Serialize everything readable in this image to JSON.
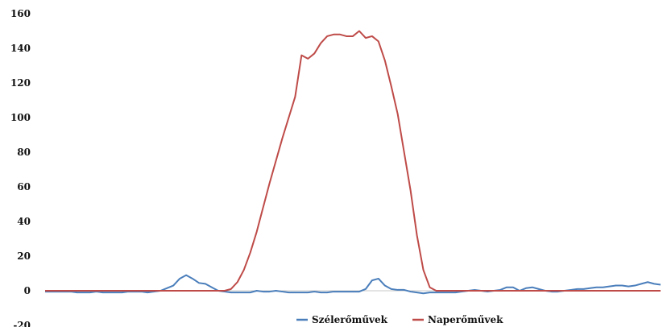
{
  "chart_data": {
    "type": "line",
    "title": "",
    "xlabel": "",
    "ylabel": "",
    "ylim": [
      -20,
      160
    ],
    "yticks": [
      -20,
      0,
      20,
      40,
      60,
      80,
      100,
      120,
      140,
      160
    ],
    "ytick_labels": [
      "-20",
      "0",
      "20",
      "40",
      "60",
      "80",
      "100",
      "120",
      "140",
      "160"
    ],
    "grid": false,
    "legend_position": "bottom",
    "x": [
      0,
      1,
      2,
      3,
      4,
      5,
      6,
      7,
      8,
      9,
      10,
      11,
      12,
      13,
      14,
      15,
      16,
      17,
      18,
      19,
      20,
      21,
      22,
      23,
      24,
      25,
      26,
      27,
      28,
      29,
      30,
      31,
      32,
      33,
      34,
      35,
      36,
      37,
      38,
      39,
      40,
      41,
      42,
      43,
      44,
      45,
      46,
      47,
      48,
      49,
      50,
      51,
      52,
      53,
      54,
      55,
      56,
      57,
      58,
      59,
      60,
      61,
      62,
      63,
      64,
      65,
      66,
      67,
      68,
      69,
      70,
      71,
      72,
      73,
      74,
      75,
      76,
      77,
      78,
      79,
      80,
      81,
      82,
      83,
      84,
      85,
      86,
      87,
      88,
      89,
      90,
      91,
      92,
      93,
      94,
      95,
      96
    ],
    "series": [
      {
        "name": "Szélerőművek",
        "color": "#4a7ebb",
        "values": [
          -0.5,
          -0.5,
          -0.5,
          -0.5,
          -0.5,
          -1,
          -1,
          -1,
          -0.5,
          -1,
          -1,
          -1,
          -1,
          -0.5,
          -0.5,
          -0.5,
          -1,
          -0.5,
          0,
          1.5,
          3,
          7,
          9,
          7,
          4.5,
          4,
          2,
          0,
          -0.5,
          -1,
          -1,
          -1,
          -1,
          0,
          -0.5,
          -0.5,
          0,
          -0.5,
          -1,
          -1,
          -1,
          -1,
          -0.5,
          -1,
          -1,
          -0.5,
          -0.5,
          -0.5,
          -0.5,
          -0.5,
          1,
          6,
          7,
          3,
          1,
          0.5,
          0.5,
          -0.5,
          -1,
          -1.5,
          -1,
          -1,
          -1,
          -1,
          -1,
          -0.5,
          0,
          0.5,
          0,
          -0.5,
          0,
          0.5,
          2,
          2,
          0,
          1.5,
          2,
          1,
          0,
          -0.5,
          -0.5,
          0,
          0.5,
          1,
          1,
          1.5,
          2,
          2,
          2.5,
          3,
          3,
          2.5,
          3,
          4,
          5,
          4,
          3.5
        ]
      },
      {
        "name": "Naperőművek",
        "color": "#be4b48",
        "values": [
          0,
          0,
          0,
          0,
          0,
          0,
          0,
          0,
          0,
          0,
          0,
          0,
          0,
          0,
          0,
          0,
          0,
          0,
          0,
          0,
          0,
          0,
          0,
          0,
          0,
          0,
          0,
          0,
          0,
          1,
          5,
          12,
          22,
          34,
          48,
          62,
          75,
          88,
          100,
          112,
          136,
          134,
          137,
          143,
          147,
          148,
          148,
          147,
          147,
          150,
          146,
          147,
          144,
          133,
          118,
          102,
          80,
          58,
          32,
          12,
          2,
          0,
          0,
          0,
          0,
          0,
          0,
          0,
          0,
          0,
          0,
          0,
          0,
          0,
          0,
          0,
          0,
          0,
          0,
          0,
          0,
          0,
          0,
          0,
          0,
          0,
          0,
          0,
          0,
          0,
          0,
          0,
          0,
          0,
          0,
          0,
          0
        ]
      }
    ]
  }
}
